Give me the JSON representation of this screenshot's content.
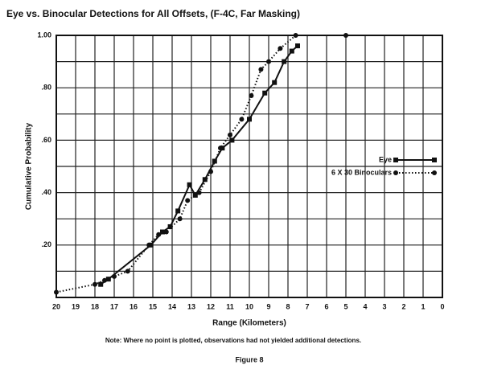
{
  "chart_data": {
    "type": "line",
    "title": "Eye vs. Binocular Detections for All Offsets, (F-4C, Far Masking)",
    "x_label": "Range (Kilometers)",
    "y_label": "Cumulative Probability",
    "note": "Note:  Where no point is plotted, observations had not yielded additional detections.",
    "caption": "Figure 8",
    "xlim": [
      20,
      0
    ],
    "xticks": [
      20,
      19,
      18,
      17,
      16,
      15,
      14,
      13,
      12,
      11,
      10,
      9,
      8,
      7,
      6,
      5,
      4,
      3,
      2,
      1,
      0
    ],
    "ylim": [
      0,
      1
    ],
    "yticks": [
      {
        "value": 0.2,
        "label": ".20"
      },
      {
        "value": 0.4,
        "label": ".40"
      },
      {
        "value": 0.6,
        "label": ".60"
      },
      {
        "value": 0.8,
        "label": ".80"
      },
      {
        "value": 1,
        "label": "1.00"
      }
    ],
    "minor_yticks": [
      0.1,
      0.3,
      0.5,
      0.7,
      0.9
    ],
    "grid": true,
    "legend": "right",
    "series": [
      {
        "name": "Eye",
        "color": "#111111",
        "marker": "square",
        "line_style": "solid",
        "x": [
          17.7,
          17.3,
          15.1,
          14.5,
          14.1,
          13.7,
          13.1,
          12.8,
          12.3,
          11.8,
          11.4,
          10.9,
          10.0,
          9.2,
          8.7,
          8.2,
          7.8,
          7.5
        ],
        "values": [
          0.05,
          0.07,
          0.2,
          0.25,
          0.27,
          0.33,
          0.43,
          0.39,
          0.45,
          0.52,
          0.57,
          0.6,
          0.68,
          0.78,
          0.82,
          0.9,
          0.94,
          0.96
        ]
      },
      {
        "name": "6 X 30 Binoculars",
        "color": "#111111",
        "marker": "circle",
        "line_style": "dotted",
        "x": [
          20,
          18.0,
          17.5,
          17.0,
          16.3,
          15.2,
          14.7,
          14.3,
          13.6,
          13.2,
          12.6,
          12.0,
          11.5,
          11.0,
          10.4,
          9.9,
          9.4,
          9.0,
          8.4,
          7.6,
          5.0
        ],
        "values": [
          0.02,
          0.05,
          0.065,
          0.08,
          0.1,
          0.2,
          0.24,
          0.25,
          0.3,
          0.37,
          0.4,
          0.48,
          0.57,
          0.62,
          0.68,
          0.77,
          0.87,
          0.9,
          0.95,
          1.0,
          1.0
        ]
      }
    ]
  }
}
